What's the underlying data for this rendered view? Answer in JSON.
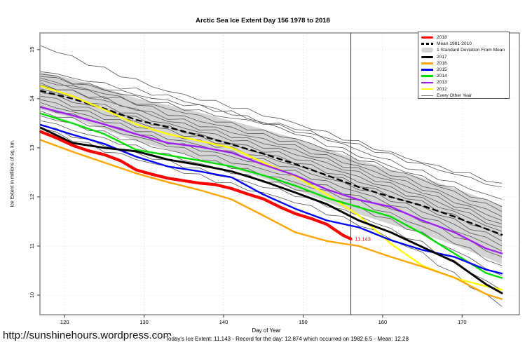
{
  "footer": {
    "url": "http://sunshinehours.wordpress.com",
    "caption": "Today's Ice Extent: 11.143  - Record for the day: 12.874 which occurred on 1982.6.5  - Mean: 12.28"
  },
  "legend": {
    "items": [
      {
        "label": "2018",
        "color": "#ff0000",
        "style": "thick"
      },
      {
        "label": "Mean 1981-2010",
        "color": "#000000",
        "style": "dashed"
      },
      {
        "label": "1 Standard Deviation From Mean",
        "color": "#d4d4d4",
        "style": "band"
      },
      {
        "label": "2017",
        "color": "#000000",
        "style": "thick"
      },
      {
        "label": "2016",
        "color": "#ffa500",
        "style": "medium"
      },
      {
        "label": "2015",
        "color": "#0000ff",
        "style": "medium"
      },
      {
        "label": "2014",
        "color": "#00dd00",
        "style": "medium"
      },
      {
        "label": "2013",
        "color": "#a020f0",
        "style": "medium"
      },
      {
        "label": "2012",
        "color": "#ffff00",
        "style": "medium"
      },
      {
        "label": "Every Other Year",
        "color": "#777777",
        "style": "thin"
      }
    ]
  },
  "chart_data": {
    "type": "line",
    "title": "Arctic Sea Ice Extent Day 156 1978 to 2018",
    "xlabel": "Day of Year",
    "ylabel": "Ice Extent in millions of sq. km.",
    "xlim": [
      116.9,
      177.2
    ],
    "ylim": [
      9.6,
      15.34
    ],
    "xticks": [
      120,
      130,
      140,
      150,
      160,
      170
    ],
    "yticks": [
      10,
      11,
      12,
      13,
      14,
      15
    ],
    "grid": "dotted",
    "vline_x": 156,
    "annotation": {
      "text": "11.143",
      "x": 156,
      "y": 11.143,
      "color": "#ff0000"
    },
    "band": {
      "name": "1 Standard Deviation From Mean",
      "fill": "#d4d4d4",
      "days": [
        117,
        121,
        125,
        129,
        133,
        137,
        141,
        145,
        149,
        153,
        157,
        161,
        165,
        169,
        173,
        175
      ],
      "top": [
        14.54,
        14.4,
        14.22,
        14.01,
        13.87,
        13.72,
        13.55,
        13.38,
        13.19,
        12.98,
        12.75,
        12.56,
        12.39,
        12.18,
        11.94,
        11.83
      ],
      "bottom": [
        13.78,
        13.6,
        13.38,
        13.13,
        12.97,
        12.78,
        12.59,
        12.38,
        12.15,
        11.9,
        11.65,
        11.44,
        11.25,
        11.02,
        10.76,
        10.63
      ]
    },
    "series": [
      {
        "name": "Mean 1981-2010",
        "color": "#000000",
        "width": 2.4,
        "dash": "7 6",
        "days": [
          117,
          121,
          125,
          129,
          133,
          137,
          141,
          145,
          149,
          153,
          157,
          161,
          165,
          169,
          173,
          175
        ],
        "values": [
          14.16,
          14.0,
          13.8,
          13.57,
          13.42,
          13.25,
          13.07,
          12.88,
          12.67,
          12.44,
          12.2,
          12.0,
          11.82,
          11.6,
          11.35,
          11.23
        ]
      },
      {
        "name": "2012",
        "color": "#ffff00",
        "width": 2.4,
        "days": [
          117,
          121,
          125,
          129,
          133,
          137,
          141,
          145,
          149,
          153,
          157,
          161,
          165,
          169,
          173,
          175
        ],
        "values": [
          14.26,
          14.05,
          13.78,
          13.48,
          13.28,
          13.14,
          13.0,
          12.7,
          12.42,
          12.05,
          11.62,
          11.05,
          10.6,
          10.35,
          10.18,
          10.11
        ]
      },
      {
        "name": "2013",
        "color": "#a020f0",
        "width": 2.4,
        "days": [
          117,
          121,
          125,
          129,
          133,
          137,
          141,
          145,
          149,
          153,
          157,
          161,
          165,
          169,
          173,
          175
        ],
        "values": [
          13.83,
          13.66,
          13.48,
          13.28,
          13.1,
          13.02,
          12.9,
          12.66,
          12.44,
          12.15,
          11.94,
          11.8,
          11.52,
          11.28,
          10.95,
          10.85
        ]
      },
      {
        "name": "2014",
        "color": "#00dd00",
        "width": 2.4,
        "days": [
          117,
          121,
          125,
          129,
          133,
          137,
          141,
          145,
          149,
          153,
          157,
          161,
          165,
          169,
          173,
          175
        ],
        "values": [
          13.7,
          13.5,
          13.28,
          12.96,
          12.85,
          12.74,
          12.62,
          12.44,
          12.23,
          11.98,
          11.79,
          11.6,
          11.25,
          10.85,
          10.45,
          10.35
        ]
      },
      {
        "name": "2015",
        "color": "#0000ff",
        "width": 2.4,
        "days": [
          117,
          121,
          125,
          129,
          133,
          137,
          141,
          145,
          149,
          153,
          157,
          161,
          165,
          169,
          173,
          175
        ],
        "values": [
          13.47,
          13.27,
          13.08,
          12.82,
          12.62,
          12.52,
          12.4,
          12.05,
          11.76,
          11.52,
          11.38,
          11.12,
          10.92,
          10.78,
          10.52,
          10.44
        ]
      },
      {
        "name": "2016",
        "color": "#ffa500",
        "width": 2.4,
        "days": [
          117,
          121,
          125,
          129,
          133,
          137,
          141,
          145,
          149,
          153,
          157,
          161,
          165,
          169,
          173,
          175
        ],
        "values": [
          13.16,
          12.92,
          12.7,
          12.48,
          12.3,
          12.14,
          11.95,
          11.62,
          11.28,
          11.1,
          11.0,
          10.78,
          10.58,
          10.36,
          10.02,
          9.92
        ]
      },
      {
        "name": "2017",
        "color": "#000000",
        "width": 2.9,
        "days": [
          117,
          121,
          125,
          129,
          133,
          137,
          141,
          145,
          149,
          153,
          157,
          161,
          165,
          169,
          173,
          175
        ],
        "values": [
          13.41,
          13.1,
          13.0,
          12.93,
          12.76,
          12.65,
          12.52,
          12.32,
          12.09,
          11.85,
          11.52,
          11.28,
          10.98,
          10.68,
          10.22,
          10.04
        ]
      },
      {
        "name": "2018",
        "color": "#ff0000",
        "width": 4.2,
        "endpoint": true,
        "days": [
          117,
          119,
          121,
          123,
          125,
          127,
          129,
          131,
          133,
          135,
          137,
          139,
          141,
          143,
          145,
          147,
          149,
          151,
          153,
          155,
          156
        ],
        "values": [
          13.33,
          13.2,
          13.05,
          12.94,
          12.86,
          12.74,
          12.55,
          12.46,
          12.38,
          12.33,
          12.28,
          12.25,
          12.17,
          12.06,
          11.96,
          11.8,
          11.66,
          11.56,
          11.44,
          11.22,
          11.143
        ]
      }
    ],
    "other_years": {
      "name": "Every Other Year",
      "color": "#555555",
      "width": 0.8,
      "days": [
        117,
        125,
        133,
        141,
        149,
        157,
        165,
        175
      ],
      "lines": [
        [
          15.08,
          14.6,
          14.15,
          13.85,
          13.5,
          13.1,
          12.7,
          12.28
        ],
        [
          14.55,
          14.3,
          14.05,
          13.7,
          13.35,
          13.05,
          12.65,
          12.2
        ],
        [
          14.5,
          14.18,
          13.88,
          13.6,
          13.42,
          12.95,
          12.5,
          11.95
        ],
        [
          14.45,
          14.22,
          13.95,
          13.72,
          13.3,
          12.85,
          12.4,
          11.8
        ],
        [
          14.42,
          14.05,
          13.8,
          13.48,
          13.18,
          12.78,
          12.35,
          11.7
        ],
        [
          14.38,
          14.12,
          13.7,
          13.4,
          13.1,
          12.7,
          12.25,
          11.6
        ],
        [
          14.32,
          13.95,
          13.62,
          13.32,
          13.02,
          12.62,
          12.18,
          11.52
        ],
        [
          14.28,
          14.0,
          13.55,
          13.25,
          12.95,
          12.55,
          12.1,
          11.45
        ],
        [
          14.2,
          13.85,
          13.48,
          13.18,
          12.88,
          12.48,
          12.02,
          11.38
        ],
        [
          14.12,
          13.78,
          13.42,
          13.1,
          12.8,
          12.4,
          11.95,
          11.3
        ],
        [
          14.05,
          13.7,
          13.35,
          13.05,
          12.72,
          12.32,
          11.88,
          11.2
        ],
        [
          13.98,
          13.62,
          13.28,
          12.98,
          12.65,
          12.25,
          11.8,
          11.1
        ],
        [
          13.92,
          13.55,
          13.2,
          12.9,
          12.58,
          12.18,
          11.72,
          11.0
        ],
        [
          13.85,
          13.48,
          13.12,
          12.82,
          12.5,
          12.1,
          11.62,
          10.9
        ],
        [
          13.75,
          13.4,
          13.05,
          12.72,
          12.4,
          12.0,
          11.52,
          10.78
        ],
        [
          13.65,
          13.3,
          12.95,
          12.62,
          12.3,
          11.9,
          11.4,
          10.6
        ],
        [
          13.55,
          13.18,
          12.85,
          12.5,
          12.18,
          11.78,
          11.25,
          10.4
        ],
        [
          13.45,
          13.05,
          12.72,
          12.38,
          12.05,
          11.62,
          11.05,
          10.1
        ],
        [
          13.4,
          12.95,
          12.6,
          12.25,
          11.9,
          11.45,
          10.85,
          9.77
        ]
      ]
    }
  }
}
